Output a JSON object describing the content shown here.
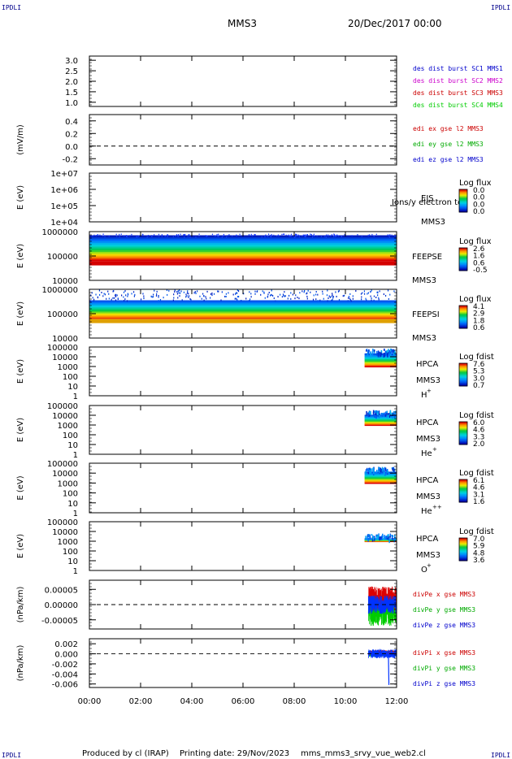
{
  "header": {
    "mission": "MMS3",
    "datetime": "20/Dec/2017 00:00",
    "corner_label": "IPDLI"
  },
  "footer": {
    "produced": "Produced by cl (IRAP)",
    "printing": "Printing date: 29/Nov/2023",
    "script": "mms_mms3_srvy_vue_web2.cl"
  },
  "chart_data": {
    "type": "multi-panel",
    "x_ticks": [
      "00:00",
      "02:00",
      "04:00",
      "06:00",
      "08:00",
      "10:00",
      "12:00"
    ],
    "x_range_hours": [
      0,
      12
    ],
    "panels": [
      {
        "id": "dist",
        "type": "line",
        "ylabel": "",
        "yticks": [
          "3.0",
          "2.5",
          "2.0",
          "1.5",
          "1.0"
        ],
        "yvals": [
          3.0,
          2.5,
          2.0,
          1.5,
          1.0
        ],
        "ylim": [
          0.8,
          3.2
        ],
        "legend": [
          {
            "text": "des dist burst SC1 MMS1",
            "color": "#0000cc"
          },
          {
            "text": "des dist burst SC2 MMS2",
            "color": "#cc00cc"
          },
          {
            "text": "des dist burst SC3 MMS3",
            "color": "#cc0000"
          },
          {
            "text": "des dist burst SC4 MMS4",
            "color": "#00cc00"
          }
        ]
      },
      {
        "id": "edi",
        "type": "line",
        "ylabel": "(mV/m)",
        "yticks": [
          "0.4",
          "0.2",
          "0.0",
          "-0.2"
        ],
        "yvals": [
          0.4,
          0.2,
          0.0,
          -0.2
        ],
        "ylim": [
          -0.3,
          0.5
        ],
        "zero_line": true,
        "legend": [
          {
            "text": "edi ex gse l2 MMS3",
            "color": "#cc0000"
          },
          {
            "text": "edi ey gse l2 MMS3",
            "color": "#00aa00"
          },
          {
            "text": "edi ez gse l2 MMS3",
            "color": "#0000cc"
          }
        ]
      },
      {
        "id": "eis",
        "type": "heatmap",
        "ylabel": "E (eV)",
        "yticks": [
          "1e+07",
          "1e+06",
          "1e+05",
          "1e+04"
        ],
        "ylog": [
          4,
          7
        ],
        "inst": [
          "EIS",
          "MMS3"
        ],
        "overlay_text": "Ions/y electron to",
        "cbar_title": "Log flux",
        "cbar_ticks": [
          "0.0",
          "0.0",
          "0.0",
          "0.0"
        ]
      },
      {
        "id": "feeps_e",
        "type": "heatmap",
        "ylabel": "E (eV)",
        "yticks": [
          "1000000",
          "100000",
          "10000"
        ],
        "ylog": [
          4,
          6
        ],
        "inst": [
          "FEEPSE",
          "MMS3"
        ],
        "cbar_title": "Log flux",
        "cbar_ticks": [
          "2.6",
          "1.6",
          "0.6",
          "-0.5"
        ]
      },
      {
        "id": "feeps_i",
        "type": "heatmap",
        "ylabel": "E (eV)",
        "yticks": [
          "1000000",
          "100000",
          "10000"
        ],
        "ylog": [
          4,
          6
        ],
        "inst": [
          "FEEPSI",
          "MMS3"
        ],
        "cbar_title": "Log flux",
        "cbar_ticks": [
          "4.1",
          "2.9",
          "1.8",
          "0.6"
        ]
      },
      {
        "id": "hpca_h",
        "type": "heatmap",
        "ylabel": "E (eV)",
        "yticks": [
          "100000",
          "10000",
          "1000",
          "100",
          "10",
          "1"
        ],
        "ylog": [
          0,
          5
        ],
        "inst": [
          "HPCA",
          "MMS3"
        ],
        "species": "H",
        "species_sup": "+",
        "cbar_title": "Log fdist",
        "cbar_ticks": [
          "7.6",
          "5.3",
          "3.0",
          "0.7"
        ]
      },
      {
        "id": "hpca_he",
        "type": "heatmap",
        "ylabel": "E (eV)",
        "yticks": [
          "100000",
          "10000",
          "1000",
          "100",
          "10",
          "1"
        ],
        "ylog": [
          0,
          5
        ],
        "inst": [
          "HPCA",
          "MMS3"
        ],
        "species": "He",
        "species_sup": "+",
        "cbar_title": "Log fdist",
        "cbar_ticks": [
          "6.0",
          "4.6",
          "3.3",
          "2.0"
        ]
      },
      {
        "id": "hpca_he2",
        "type": "heatmap",
        "ylabel": "E (eV)",
        "yticks": [
          "100000",
          "10000",
          "1000",
          "100",
          "10",
          "1"
        ],
        "ylog": [
          0,
          5
        ],
        "inst": [
          "HPCA",
          "MMS3"
        ],
        "species": "He",
        "species_sup": "++",
        "cbar_title": "Log fdist",
        "cbar_ticks": [
          "6.1",
          "4.6",
          "3.1",
          "1.6"
        ]
      },
      {
        "id": "hpca_o",
        "type": "heatmap",
        "ylabel": "E (eV)",
        "yticks": [
          "100000",
          "10000",
          "1000",
          "100",
          "10",
          "1"
        ],
        "ylog": [
          0,
          5
        ],
        "inst": [
          "HPCA",
          "MMS3"
        ],
        "species": "O",
        "species_sup": "+",
        "cbar_title": "Log fdist",
        "cbar_ticks": [
          "7.0",
          "5.9",
          "4.8",
          "3.6"
        ]
      },
      {
        "id": "divpe",
        "type": "line",
        "ylabel": "(nPa/km)",
        "yticks": [
          "0.00005",
          "0.00000",
          "-0.00005"
        ],
        "yvals": [
          5e-05,
          0,
          -5e-05
        ],
        "ylim": [
          -8e-05,
          8e-05
        ],
        "zero_line": true,
        "legend": [
          {
            "text": "divPe x gse MMS3",
            "color": "#cc0000"
          },
          {
            "text": "divPe y gse MMS3",
            "color": "#00aa00"
          },
          {
            "text": "divPe z gse MMS3",
            "color": "#0000cc"
          }
        ]
      },
      {
        "id": "divpi",
        "type": "line",
        "ylabel": "(nPa/km)",
        "yticks": [
          "0.002",
          "0.000",
          "-0.002",
          "-0.004",
          "-0.006"
        ],
        "yvals": [
          0.002,
          0,
          -0.002,
          -0.004,
          -0.006
        ],
        "ylim": [
          -0.0067,
          0.003
        ],
        "zero_line": true,
        "legend": [
          {
            "text": "divPi x gse MMS3",
            "color": "#cc0000"
          },
          {
            "text": "divPi y gse MMS3",
            "color": "#00aa00"
          },
          {
            "text": "divPi z gse MMS3",
            "color": "#0000cc"
          }
        ]
      }
    ]
  }
}
